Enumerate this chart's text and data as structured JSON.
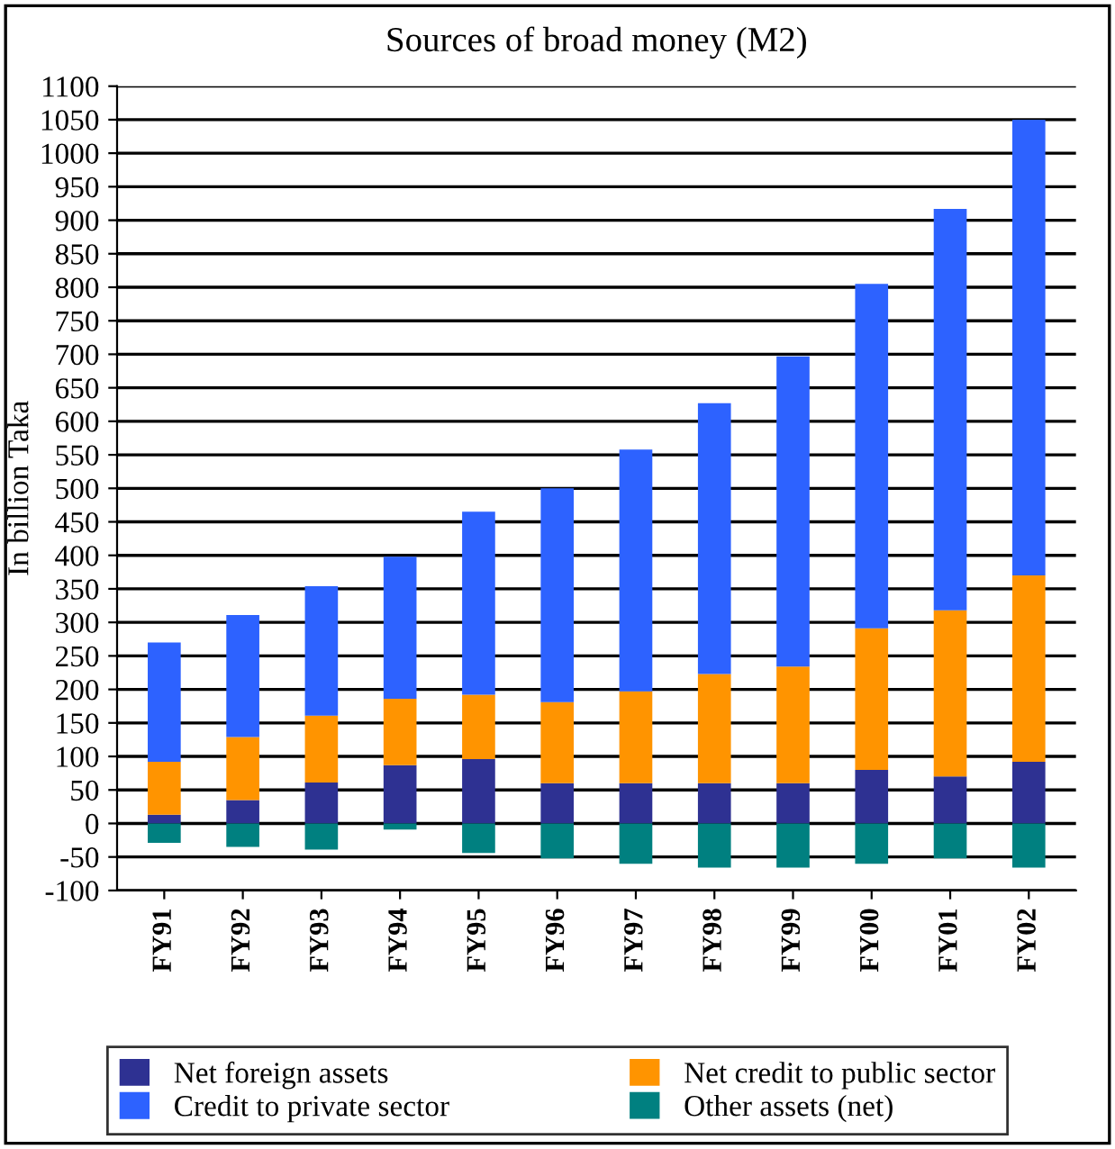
{
  "chart_data": {
    "type": "bar",
    "stacked": true,
    "title": "Sources of broad money (M2)",
    "ylabel": "In billion Taka",
    "categories": [
      "FY91",
      "FY92",
      "FY93",
      "FY94",
      "FY95",
      "FY96",
      "FY97",
      "FY98",
      "FY99",
      "FY00",
      "FY01",
      "FY02"
    ],
    "series": [
      {
        "name": "Net foreign assets",
        "color": "#2e3192",
        "values": [
          13,
          35,
          61,
          87,
          96,
          60,
          60,
          60,
          60,
          80,
          70,
          92
        ]
      },
      {
        "name": "Net credit to public sector",
        "color": "#ff9400",
        "values": [
          79,
          94,
          100,
          99,
          96,
          121,
          137,
          163,
          174,
          211,
          248,
          278
        ]
      },
      {
        "name": "Credit to private sector",
        "color": "#2d62ff",
        "values": [
          178,
          182,
          193,
          212,
          273,
          319,
          361,
          404,
          463,
          514,
          599,
          680
        ]
      },
      {
        "name": "Other assets (net)",
        "color": "#008080",
        "values": [
          -29,
          -35,
          -39,
          -9,
          -44,
          -52,
          -60,
          -66,
          -66,
          -60,
          -52,
          -66
        ]
      }
    ],
    "ylim": [
      -100,
      1100
    ],
    "yticks": [
      -100,
      -50,
      0,
      50,
      100,
      150,
      200,
      250,
      300,
      350,
      400,
      450,
      500,
      550,
      600,
      650,
      700,
      750,
      800,
      850,
      900,
      950,
      1000,
      1050,
      1100
    ],
    "grid": "y",
    "legend": "bottom"
  }
}
